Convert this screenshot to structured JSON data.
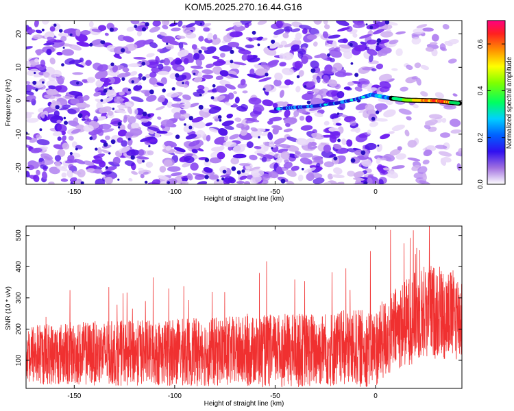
{
  "chart_data": [
    {
      "type": "heatmap",
      "title": "KOM5.2025.270.16.44.G16",
      "xlabel": "Height of straight line (km)",
      "ylabel": "Frequency (Hz)",
      "xlim": [
        -174,
        43
      ],
      "ylim": [
        -25,
        24
      ],
      "xticks": [
        -150,
        -100,
        -50,
        0
      ],
      "yticks": [
        -20,
        -10,
        0,
        10,
        20
      ],
      "colorbar": {
        "label": "Normalized spectral amplitude",
        "range": [
          0.0,
          0.7
        ],
        "ticks": [
          "0.0",
          "0.2",
          "0.4",
          "0.6"
        ]
      },
      "ridge": {
        "points": [
          {
            "x": -50,
            "y": -2.5
          },
          {
            "x": -40,
            "y": -2.0
          },
          {
            "x": -30,
            "y": -1.6
          },
          {
            "x": -20,
            "y": -0.8
          },
          {
            "x": -10,
            "y": 0.4
          },
          {
            "x": -2,
            "y": 1.8
          },
          {
            "x": 5,
            "y": 1.0
          },
          {
            "x": 15,
            "y": 0.2
          },
          {
            "x": 30,
            "y": 0.0
          },
          {
            "x": 42,
            "y": -0.8
          }
        ]
      }
    },
    {
      "type": "line",
      "xlabel": "Height of straight line (km)",
      "ylabel": "SNR (10 * v/v)",
      "xlim": [
        -174,
        43
      ],
      "ylim": [
        10,
        530
      ],
      "xticks": [
        -150,
        -100,
        -50,
        0
      ],
      "yticks": [
        100,
        200,
        300,
        400,
        500
      ],
      "series": [
        {
          "name": "SNR",
          "color": "#f03030",
          "baseline_profile": [
            {
              "x": -174,
              "mean": 120,
              "spread": 110
            },
            {
              "x": -100,
              "mean": 125,
              "spread": 120
            },
            {
              "x": -50,
              "mean": 130,
              "spread": 130
            },
            {
              "x": 0,
              "mean": 140,
              "spread": 140
            },
            {
              "x": 10,
              "mean": 200,
              "spread": 150
            },
            {
              "x": 25,
              "mean": 260,
              "spread": 170
            },
            {
              "x": 43,
              "mean": 240,
              "spread": 160
            }
          ]
        }
      ]
    }
  ]
}
